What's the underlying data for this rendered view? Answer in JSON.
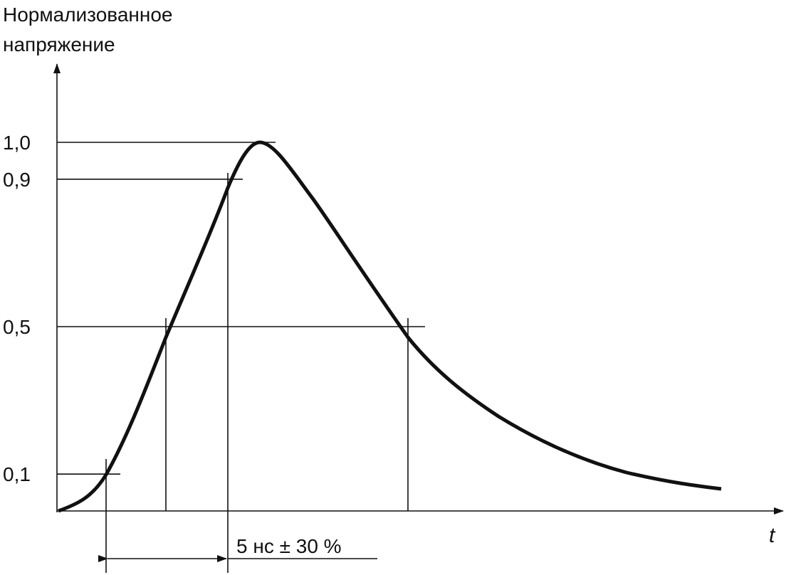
{
  "y_axis": {
    "label": [
      "Нормализованное",
      "напряжение"
    ],
    "levels": [
      {
        "value": 1.0,
        "label": "1,0"
      },
      {
        "value": 0.9,
        "label": "0,9"
      },
      {
        "value": 0.5,
        "label": "0,5"
      },
      {
        "value": 0.1,
        "label": "0,1"
      }
    ]
  },
  "x_axis": {
    "label": "t"
  },
  "annotation": "5 нс ± 30 %"
}
